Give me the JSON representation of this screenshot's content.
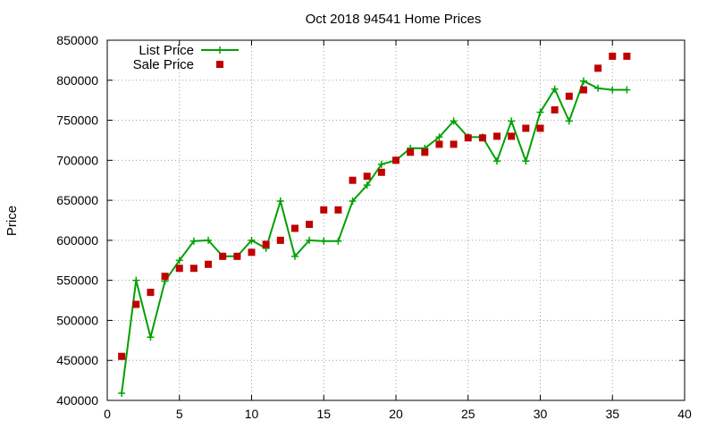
{
  "chart_data": {
    "type": "line",
    "title": "Oct 2018 94541 Home Prices",
    "xlabel": "",
    "ylabel": "Price",
    "xlim": [
      0,
      40
    ],
    "ylim": [
      400000,
      850000
    ],
    "x_ticks": [
      0,
      5,
      10,
      15,
      20,
      25,
      30,
      35,
      40
    ],
    "y_ticks": [
      400000,
      450000,
      500000,
      550000,
      600000,
      650000,
      700000,
      750000,
      800000,
      850000
    ],
    "grid": true,
    "legend_position": "top-left",
    "series": [
      {
        "name": "List Price",
        "style": "line+cross",
        "color": "#00a000",
        "x": [
          1,
          2,
          3,
          4,
          5,
          6,
          7,
          8,
          9,
          10,
          11,
          12,
          13,
          14,
          15,
          16,
          17,
          18,
          19,
          20,
          21,
          22,
          23,
          24,
          25,
          26,
          27,
          28,
          29,
          30,
          31,
          32,
          33,
          34,
          35,
          36
        ],
        "values": [
          409000,
          550000,
          479000,
          549000,
          575000,
          599000,
          600000,
          580000,
          580000,
          600000,
          590000,
          649000,
          580000,
          600000,
          599000,
          599000,
          649000,
          669000,
          695000,
          700000,
          715000,
          715000,
          729000,
          749000,
          729000,
          729000,
          699000,
          749000,
          699000,
          760000,
          789000,
          749000,
          799000,
          790000,
          788000,
          788000
        ]
      },
      {
        "name": "Sale Price",
        "style": "square",
        "color": "#c00000",
        "x": [
          1,
          2,
          3,
          4,
          5,
          6,
          7,
          8,
          9,
          10,
          11,
          12,
          13,
          14,
          15,
          16,
          17,
          18,
          19,
          20,
          21,
          22,
          23,
          24,
          25,
          26,
          27,
          28,
          29,
          30,
          31,
          32,
          33,
          34,
          35,
          36
        ],
        "values": [
          455000,
          520000,
          535000,
          555000,
          565000,
          565000,
          570000,
          580000,
          580000,
          585000,
          595000,
          600000,
          615000,
          620000,
          638000,
          638000,
          675000,
          680000,
          685000,
          700000,
          710000,
          710000,
          720000,
          720000,
          728000,
          728000,
          730000,
          730000,
          740000,
          740000,
          763000,
          780000,
          788000,
          815000,
          830000,
          830000
        ]
      }
    ]
  }
}
